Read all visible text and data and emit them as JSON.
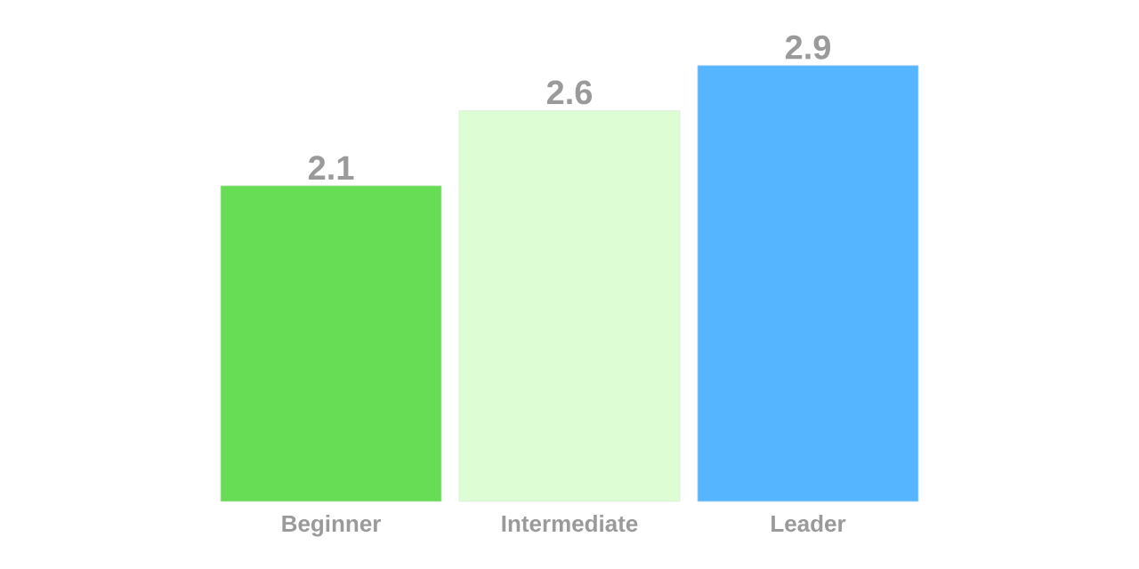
{
  "chart_data": {
    "type": "bar",
    "categories": [
      "Beginner",
      "Intermediate",
      "Leader"
    ],
    "values": [
      2.1,
      2.6,
      2.9
    ],
    "colors": [
      "#66dd55",
      "#ddfdd5",
      "#55b5ff"
    ],
    "data_labels": true
  }
}
